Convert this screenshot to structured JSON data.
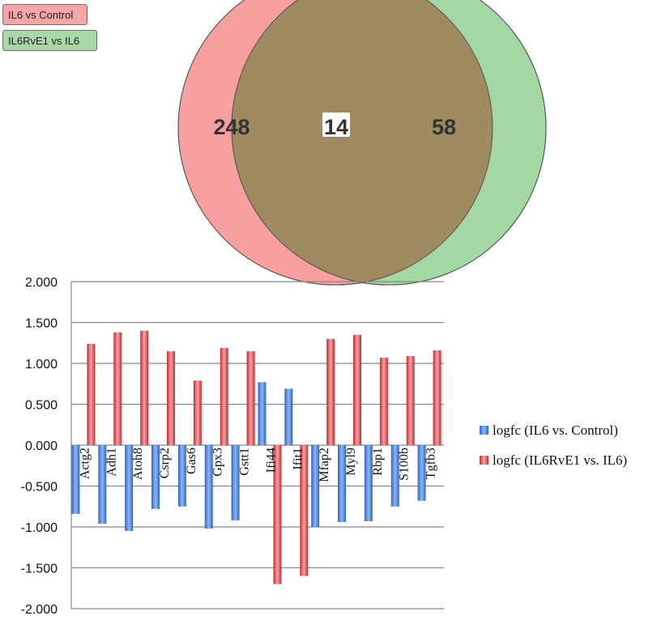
{
  "venn": {
    "legend": [
      "IL6 vs Control",
      "IL6RvE1 vs IL6"
    ],
    "left_only": "248",
    "overlap": "14",
    "right_only": "58",
    "colors": {
      "left": "#f8a0a0",
      "right": "#a3d7a3",
      "overlap": "#a08a60",
      "legend_left": "#f4a6a6",
      "legend_right": "#a8d8a8"
    }
  },
  "chart_data": {
    "type": "bar",
    "categories": [
      "Actg2",
      "Adh1",
      "Atoh8",
      "Csrp2",
      "Gas6",
      "Gpx3",
      "Gstt1",
      "Ifi44",
      "Ifit1",
      "Mfap2",
      "Myl9",
      "Rbp1",
      "S100b",
      "Tgfb3"
    ],
    "series": [
      {
        "name": "logfc (IL6 vs. Control)",
        "color": "#4a7fd6",
        "values": [
          -0.84,
          -0.96,
          -1.05,
          -0.78,
          -0.75,
          -1.02,
          -0.92,
          0.77,
          0.69,
          -1.0,
          -0.94,
          -0.93,
          -0.75,
          -0.68
        ]
      },
      {
        "name": "logfc (IL6RvE1 vs. IL6)",
        "color": "#d8393f",
        "values": [
          1.24,
          1.38,
          1.4,
          1.15,
          0.79,
          1.19,
          1.15,
          -1.7,
          -1.6,
          1.3,
          1.35,
          1.07,
          1.09,
          1.16
        ]
      }
    ],
    "ylim": [
      -2.0,
      2.0
    ],
    "yticks": [
      "2.000",
      "1.500",
      "1.000",
      "0.500",
      "0.000",
      "-0.500",
      "-1.000",
      "-1.500",
      "-2.000"
    ],
    "grid": true,
    "legend_position": "right"
  }
}
